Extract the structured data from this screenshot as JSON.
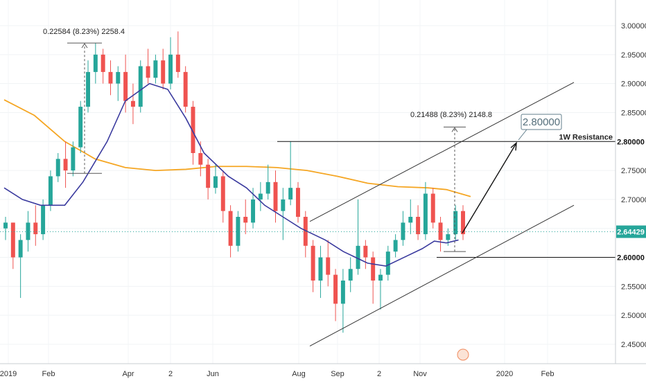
{
  "chart_data": {
    "type": "candlestick",
    "title": "",
    "x_axis": {
      "tick_labels": [
        "2019",
        "Feb",
        "Apr",
        "2",
        "Jun",
        "Aug",
        "Sep",
        "2",
        "Nov",
        "2020",
        "Feb"
      ],
      "range": [
        "2019-01-01",
        "2020-02-29"
      ]
    },
    "y_axis": {
      "ylim": [
        2.42,
        3.04
      ],
      "tick_labels": [
        "2.45000",
        "2.50000",
        "2.55000",
        "2.60000",
        "2.65000",
        "2.70000",
        "2.75000",
        "2.80000",
        "2.85000",
        "2.90000",
        "2.95000",
        "3.00000"
      ],
      "tick_values": [
        2.45,
        2.5,
        2.55,
        2.6,
        2.65,
        2.7,
        2.75,
        2.8,
        2.85,
        2.9,
        2.95,
        3.0
      ],
      "position": "right"
    },
    "current_price": {
      "value": 2.64429,
      "label": "2.64429",
      "color": "#26a69a"
    },
    "levels": [
      {
        "value": 2.8,
        "label": "2.80000",
        "name": "1W Resistance"
      },
      {
        "value": 2.6,
        "label": "2.60000"
      }
    ],
    "target": {
      "value": 2.8,
      "label": "2.80000"
    },
    "measurements": [
      {
        "label": "0.22584 (8.23%) 2258.4",
        "from": 2.745,
        "to": 2.97
      },
      {
        "label": "0.21488 (8.23%) 2148.8",
        "from": 2.61,
        "to": 2.825
      }
    ],
    "series": [
      {
        "type": "line",
        "color": "#f5a623",
        "points": [
          [
            0,
            2.872
          ],
          [
            0.05,
            2.845
          ],
          [
            0.1,
            2.8
          ],
          [
            0.15,
            2.77
          ],
          [
            0.2,
            2.755
          ],
          [
            0.25,
            2.75
          ],
          [
            0.3,
            2.752
          ],
          [
            0.35,
            2.757
          ],
          [
            0.4,
            2.757
          ],
          [
            0.45,
            2.755
          ],
          [
            0.5,
            2.75
          ],
          [
            0.55,
            2.74
          ],
          [
            0.6,
            2.728
          ],
          [
            0.65,
            2.722
          ],
          [
            0.7,
            2.72
          ],
          [
            0.73,
            2.717
          ],
          [
            0.77,
            2.705
          ]
        ]
      },
      {
        "type": "line",
        "color": "#3a3a9e",
        "points": [
          [
            0,
            2.72
          ],
          [
            0.03,
            2.7
          ],
          [
            0.06,
            2.69
          ],
          [
            0.1,
            2.69
          ],
          [
            0.13,
            2.73
          ],
          [
            0.17,
            2.8
          ],
          [
            0.2,
            2.87
          ],
          [
            0.24,
            2.9
          ],
          [
            0.27,
            2.89
          ],
          [
            0.3,
            2.84
          ],
          [
            0.33,
            2.78
          ],
          [
            0.37,
            2.74
          ],
          [
            0.4,
            2.72
          ],
          [
            0.43,
            2.69
          ],
          [
            0.46,
            2.67
          ],
          [
            0.49,
            2.65
          ],
          [
            0.53,
            2.63
          ],
          [
            0.56,
            2.61
          ],
          [
            0.6,
            2.59
          ],
          [
            0.63,
            2.585
          ],
          [
            0.66,
            2.6
          ],
          [
            0.69,
            2.615
          ],
          [
            0.71,
            2.628
          ],
          [
            0.73,
            2.625
          ],
          [
            0.75,
            2.63
          ]
        ]
      }
    ],
    "candles": [
      [
        2.65,
        2.67,
        2.63,
        2.66
      ],
      [
        2.66,
        2.66,
        2.58,
        2.6
      ],
      [
        2.6,
        2.64,
        2.53,
        2.63
      ],
      [
        2.63,
        2.68,
        2.61,
        2.66
      ],
      [
        2.66,
        2.69,
        2.62,
        2.64
      ],
      [
        2.64,
        2.7,
        2.63,
        2.69
      ],
      [
        2.69,
        2.75,
        2.68,
        2.74
      ],
      [
        2.74,
        2.78,
        2.73,
        2.77
      ],
      [
        2.77,
        2.8,
        2.72,
        2.75
      ],
      [
        2.75,
        2.8,
        2.74,
        2.79
      ],
      [
        2.79,
        2.87,
        2.78,
        2.86
      ],
      [
        2.86,
        2.94,
        2.85,
        2.92
      ],
      [
        2.92,
        2.97,
        2.9,
        2.95
      ],
      [
        2.95,
        2.96,
        2.9,
        2.92
      ],
      [
        2.92,
        2.94,
        2.88,
        2.9
      ],
      [
        2.9,
        2.93,
        2.87,
        2.92
      ],
      [
        2.92,
        2.95,
        2.85,
        2.87
      ],
      [
        2.87,
        2.9,
        2.83,
        2.86
      ],
      [
        2.86,
        2.94,
        2.85,
        2.93
      ],
      [
        2.93,
        2.96,
        2.9,
        2.91
      ],
      [
        2.91,
        2.95,
        2.9,
        2.94
      ],
      [
        2.94,
        2.96,
        2.89,
        2.9
      ],
      [
        2.9,
        2.98,
        2.89,
        2.95
      ],
      [
        2.95,
        2.99,
        2.91,
        2.92
      ],
      [
        2.92,
        2.93,
        2.85,
        2.86
      ],
      [
        2.86,
        2.87,
        2.76,
        2.78
      ],
      [
        2.78,
        2.8,
        2.74,
        2.76
      ],
      [
        2.76,
        2.77,
        2.7,
        2.72
      ],
      [
        2.72,
        2.76,
        2.71,
        2.74
      ],
      [
        2.74,
        2.75,
        2.66,
        2.68
      ],
      [
        2.68,
        2.69,
        2.6,
        2.62
      ],
      [
        2.62,
        2.68,
        2.61,
        2.67
      ],
      [
        2.67,
        2.7,
        2.64,
        2.66
      ],
      [
        2.66,
        2.72,
        2.65,
        2.7
      ],
      [
        2.7,
        2.73,
        2.68,
        2.71
      ],
      [
        2.71,
        2.76,
        2.7,
        2.73
      ],
      [
        2.73,
        2.75,
        2.66,
        2.68
      ],
      [
        2.68,
        2.72,
        2.63,
        2.7
      ],
      [
        2.7,
        2.8,
        2.69,
        2.72
      ],
      [
        2.72,
        2.73,
        2.66,
        2.67
      ],
      [
        2.67,
        2.68,
        2.6,
        2.62
      ],
      [
        2.62,
        2.63,
        2.54,
        2.56
      ],
      [
        2.56,
        2.62,
        2.53,
        2.6
      ],
      [
        2.6,
        2.63,
        2.55,
        2.57
      ],
      [
        2.57,
        2.58,
        2.49,
        2.52
      ],
      [
        2.52,
        2.58,
        2.47,
        2.56
      ],
      [
        2.56,
        2.6,
        2.54,
        2.58
      ],
      [
        2.58,
        2.7,
        2.57,
        2.62
      ],
      [
        2.62,
        2.63,
        2.58,
        2.6
      ],
      [
        2.6,
        2.61,
        2.52,
        2.56
      ],
      [
        2.56,
        2.58,
        2.51,
        2.57
      ],
      [
        2.57,
        2.62,
        2.56,
        2.61
      ],
      [
        2.61,
        2.64,
        2.6,
        2.63
      ],
      [
        2.63,
        2.68,
        2.62,
        2.66
      ],
      [
        2.66,
        2.7,
        2.64,
        2.67
      ],
      [
        2.67,
        2.69,
        2.63,
        2.64
      ],
      [
        2.64,
        2.73,
        2.63,
        2.71
      ],
      [
        2.71,
        2.72,
        2.65,
        2.66
      ],
      [
        2.66,
        2.67,
        2.61,
        2.63
      ],
      [
        2.63,
        2.65,
        2.62,
        2.64
      ],
      [
        2.64,
        2.69,
        2.63,
        2.68
      ],
      [
        2.68,
        2.69,
        2.63,
        2.64
      ]
    ]
  }
}
